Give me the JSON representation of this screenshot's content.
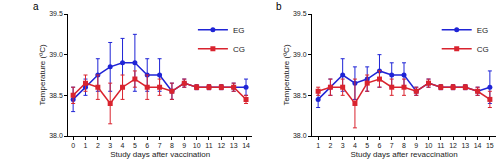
{
  "chart_data": [
    {
      "type": "line",
      "title": "a",
      "x_label": "Study days after vaccination",
      "y_label": "Temperature (ºC)",
      "x": [
        0,
        1,
        2,
        3,
        4,
        5,
        6,
        7,
        8,
        9,
        10,
        11,
        12,
        13,
        14
      ],
      "xlim": [
        -0.4,
        14.5
      ],
      "xticks": [
        0,
        1,
        2,
        3,
        4,
        5,
        6,
        7,
        8,
        9,
        10,
        11,
        12,
        13,
        14
      ],
      "ylim": [
        38.0,
        39.5
      ],
      "yticks": [
        {
          "value": 38.0,
          "label": "38.0"
        },
        {
          "value": 38.5,
          "label": "38.5"
        },
        {
          "value": 39.0,
          "label": "39.0"
        },
        {
          "value": 39.5,
          "label": "39.5"
        }
      ],
      "grid": false,
      "legend": "top right",
      "series": [
        {
          "name": "EG",
          "color": "#1f24d6",
          "marker": "circle",
          "line_style": "solid",
          "values": [
            38.45,
            38.6,
            38.75,
            38.85,
            38.9,
            38.9,
            38.75,
            38.75,
            38.55,
            38.65,
            38.6,
            38.6,
            38.6,
            38.6,
            38.6
          ],
          "errors": [
            0.15,
            0.1,
            0.2,
            0.3,
            0.3,
            0.35,
            0.2,
            0.2,
            0.1,
            0.05,
            0.03,
            0.03,
            0.03,
            0.05,
            0.1
          ]
        },
        {
          "name": "CG",
          "color": "#d9232e",
          "marker": "square",
          "line_style": "solid",
          "values": [
            38.5,
            38.65,
            38.6,
            38.4,
            38.6,
            38.7,
            38.6,
            38.6,
            38.55,
            38.65,
            38.6,
            38.6,
            38.6,
            38.6,
            38.45
          ],
          "errors": [
            0.1,
            0.1,
            0.15,
            0.25,
            0.15,
            0.1,
            0.15,
            0.1,
            0.1,
            0.05,
            0.03,
            0.03,
            0.03,
            0.05,
            0.05
          ]
        }
      ]
    },
    {
      "type": "line",
      "title": "b",
      "x_label": "Study days after revaccination",
      "y_label": "Temperature (ºC)",
      "x": [
        1,
        2,
        3,
        4,
        5,
        6,
        7,
        8,
        9,
        10,
        11,
        12,
        13,
        14,
        15
      ],
      "xlim": [
        0.5,
        15.5
      ],
      "xticks": [
        1,
        2,
        3,
        4,
        5,
        6,
        7,
        8,
        9,
        10,
        11,
        12,
        13,
        14,
        15
      ],
      "ylim": [
        38.0,
        39.5
      ],
      "yticks": [
        {
          "value": 38.0,
          "label": "38.0"
        },
        {
          "value": 38.5,
          "label": "38.5"
        },
        {
          "value": 39.0,
          "label": "39.0"
        },
        {
          "value": 39.5,
          "label": "39.5"
        }
      ],
      "grid": false,
      "legend": "top right",
      "series": [
        {
          "name": "EG",
          "color": "#1f24d6",
          "marker": "circle",
          "line_style": "solid",
          "values": [
            38.45,
            38.6,
            38.75,
            38.65,
            38.7,
            38.8,
            38.75,
            38.75,
            38.55,
            38.65,
            38.6,
            38.6,
            38.6,
            38.55,
            38.6
          ],
          "errors": [
            0.1,
            0.1,
            0.2,
            0.2,
            0.15,
            0.2,
            0.15,
            0.15,
            0.05,
            0.05,
            0.03,
            0.03,
            0.03,
            0.05,
            0.2
          ]
        },
        {
          "name": "CG",
          "color": "#d9232e",
          "marker": "square",
          "line_style": "solid",
          "values": [
            38.55,
            38.6,
            38.6,
            38.4,
            38.65,
            38.7,
            38.6,
            38.6,
            38.55,
            38.65,
            38.6,
            38.6,
            38.6,
            38.55,
            38.45
          ],
          "errors": [
            0.05,
            0.1,
            0.1,
            0.3,
            0.1,
            0.1,
            0.1,
            0.1,
            0.05,
            0.05,
            0.03,
            0.03,
            0.03,
            0.05,
            0.1
          ]
        }
      ]
    }
  ]
}
